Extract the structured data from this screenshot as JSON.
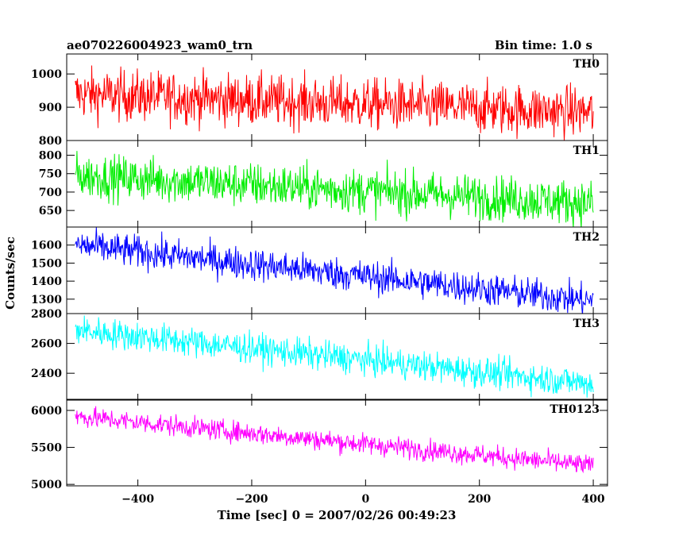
{
  "header": {
    "title": "ae070226004923_wam0_trn",
    "bin_time": "Bin time: 1.0 s"
  },
  "chart_data": {
    "type": "line",
    "title": "ae070226004923_wam0_trn",
    "subtitle": "Bin time: 1.0 s",
    "xlabel": "Time [sec] 0 = 2007/02/26 00:49:23",
    "ylabel": "Counts/sec",
    "xlim": [
      -525,
      425
    ],
    "xticks": [
      -400,
      -200,
      0,
      200,
      400
    ],
    "xtick_labels": [
      "−400",
      "−200",
      "0",
      "200",
      "400"
    ],
    "data_x_range": [
      -510,
      400
    ],
    "bin_seconds": 1.0,
    "panels": [
      {
        "name": "TH0",
        "color": "#ff0000",
        "ylim": [
          800,
          1060
        ],
        "yticks": [
          800,
          900,
          1000
        ],
        "trend": [
          [
            -510,
            940
          ],
          [
            400,
            885
          ]
        ],
        "noise_sigma": 38
      },
      {
        "name": "TH1",
        "color": "#00ee00",
        "ylim": [
          605,
          840
        ],
        "yticks": [
          650,
          700,
          750,
          800
        ],
        "trend": [
          [
            -510,
            745
          ],
          [
            400,
            670
          ]
        ],
        "noise_sigma": 30
      },
      {
        "name": "TH2",
        "color": "#0000ff",
        "ylim": [
          1220,
          1700
        ],
        "yticks": [
          1300,
          1400,
          1500,
          1600
        ],
        "trend": [
          [
            -510,
            1600
          ],
          [
            400,
            1290
          ]
        ],
        "noise_sigma": 45
      },
      {
        "name": "TH3",
        "color": "#00ffff",
        "ylim": [
          2220,
          2800
        ],
        "yticks": [
          2400,
          2600,
          2800
        ],
        "trend": [
          [
            -510,
            2690
          ],
          [
            400,
            2330
          ]
        ],
        "noise_sigma": 50
      },
      {
        "name": "TH0123",
        "color": "#ff00ff",
        "ylim": [
          4980,
          6150
        ],
        "yticks": [
          5000,
          5500,
          6000
        ],
        "trend": [
          [
            -510,
            5920
          ],
          [
            400,
            5250
          ]
        ],
        "noise_sigma": 70
      }
    ]
  }
}
